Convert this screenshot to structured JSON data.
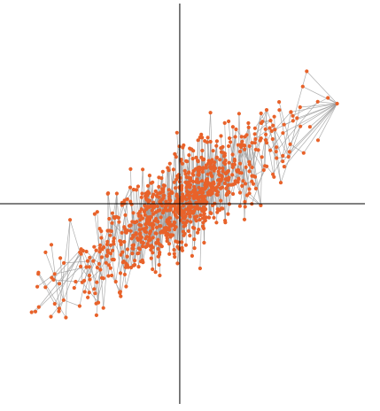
{
  "chart_data": {
    "type": "scatter",
    "title": "",
    "xlabel": "",
    "ylabel": "",
    "xlim": [
      -3.5,
      4.0
    ],
    "ylim": [
      -3.5,
      3.5
    ],
    "grid": false,
    "legend": "none",
    "axis_style": "crosshair-through-origin",
    "colors": {
      "points": "#e8622a",
      "edges": "#9a9a9a",
      "axes": "#000000"
    },
    "generation": {
      "n_points": 900,
      "seed": 17,
      "trend_slope": 0.52,
      "x_spread": 1.05,
      "y_noise": 0.42,
      "edges_per_point": 1
    },
    "notable_points": [
      {
        "x": 3.2,
        "y": 1.85
      },
      {
        "x": 3.4,
        "y": 1.75
      },
      {
        "x": -2.7,
        "y": -1.75
      },
      {
        "x": -1.8,
        "y": -1.95
      },
      {
        "x": -2.9,
        "y": -0.85
      },
      {
        "x": -1.3,
        "y": -1.55
      },
      {
        "x": 0.2,
        "y": 0.85
      },
      {
        "x": -0.8,
        "y": 0.6
      },
      {
        "x": 1.4,
        "y": 0.95
      },
      {
        "x": 2.4,
        "y": 1.6
      }
    ]
  }
}
